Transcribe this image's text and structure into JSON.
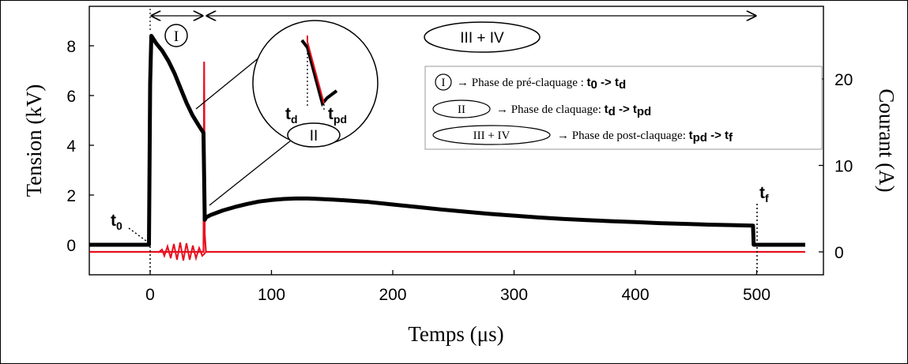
{
  "chart_data": {
    "type": "line",
    "xlabel": "Temps (μs)",
    "ylabel_left": "Tension (kV)",
    "ylabel_right": "Courant (A)",
    "xlim": [
      -50,
      550
    ],
    "ylim_left": [
      -1,
      9
    ],
    "ylim_right": [
      -1.4,
      28
    ],
    "x_ticks": [
      0,
      100,
      200,
      300,
      400,
      500
    ],
    "y_ticks_left": [
      0,
      2,
      4,
      6,
      8
    ],
    "y_ticks_right": [
      0,
      10,
      20
    ],
    "grid": false,
    "series": [
      {
        "color": "#000000",
        "axis": "left",
        "x": [
          -50,
          -1,
          0,
          1,
          5,
          10,
          15,
          20,
          25,
          30,
          35,
          40,
          44,
          45,
          46,
          50,
          60,
          70,
          80,
          90,
          100,
          110,
          120,
          130,
          140,
          150,
          160,
          180,
          200,
          220,
          240,
          260,
          280,
          300,
          320,
          340,
          360,
          380,
          400,
          420,
          440,
          460,
          480,
          497,
          497.5,
          500,
          520,
          540
        ],
        "y": [
          0,
          0,
          6.5,
          8.4,
          8.1,
          7.8,
          7.4,
          6.9,
          6.3,
          5.7,
          5.2,
          4.8,
          4.5,
          1.0,
          1.1,
          1.2,
          1.38,
          1.52,
          1.64,
          1.74,
          1.8,
          1.84,
          1.86,
          1.86,
          1.84,
          1.82,
          1.79,
          1.72,
          1.62,
          1.52,
          1.42,
          1.33,
          1.24,
          1.17,
          1.1,
          1.04,
          0.99,
          0.95,
          0.91,
          0.87,
          0.84,
          0.81,
          0.79,
          0.77,
          0,
          0,
          0,
          0
        ]
      },
      {
        "color": "#e8101e",
        "axis": "right",
        "x": [
          -50,
          0,
          44,
          44.5,
          45,
          46,
          540
        ],
        "y": [
          0,
          0,
          0,
          22,
          2,
          0,
          0
        ]
      }
    ],
    "annotations": {
      "t0": {
        "base": "t",
        "sub": "0",
        "x": 0
      },
      "td": {
        "base": "t",
        "sub": "d"
      },
      "tpd": {
        "base": "t",
        "sub": "pd"
      },
      "tf": {
        "base": "t",
        "sub": "f",
        "x": 497
      },
      "phase_I": {
        "label": "I",
        "x_start": 0,
        "x_end": 44
      },
      "phase_II": {
        "label": "II"
      },
      "phase_III_IV": {
        "label": "III + IV",
        "x_start": 44,
        "x_end": 497
      }
    },
    "legend": {
      "placement": "top-right",
      "items": [
        {
          "symbol": "I",
          "text": "→ Phase de pré-claquage : ",
          "from": {
            "base": "t",
            "sub": "0"
          },
          "arrow": " -> ",
          "to": {
            "base": "t",
            "sub": "d"
          }
        },
        {
          "symbol": "II",
          "text": "→ Phase de claquage: ",
          "from": {
            "base": "t",
            "sub": "d"
          },
          "arrow": " -> ",
          "to": {
            "base": "t",
            "sub": "pd"
          }
        },
        {
          "symbol": "III + IV",
          "text": "→ Phase de post-claquage: ",
          "from": {
            "base": "t",
            "sub": "pd"
          },
          "arrow": " -> ",
          "to": {
            "base": "t",
            "sub": "f"
          }
        }
      ]
    }
  }
}
